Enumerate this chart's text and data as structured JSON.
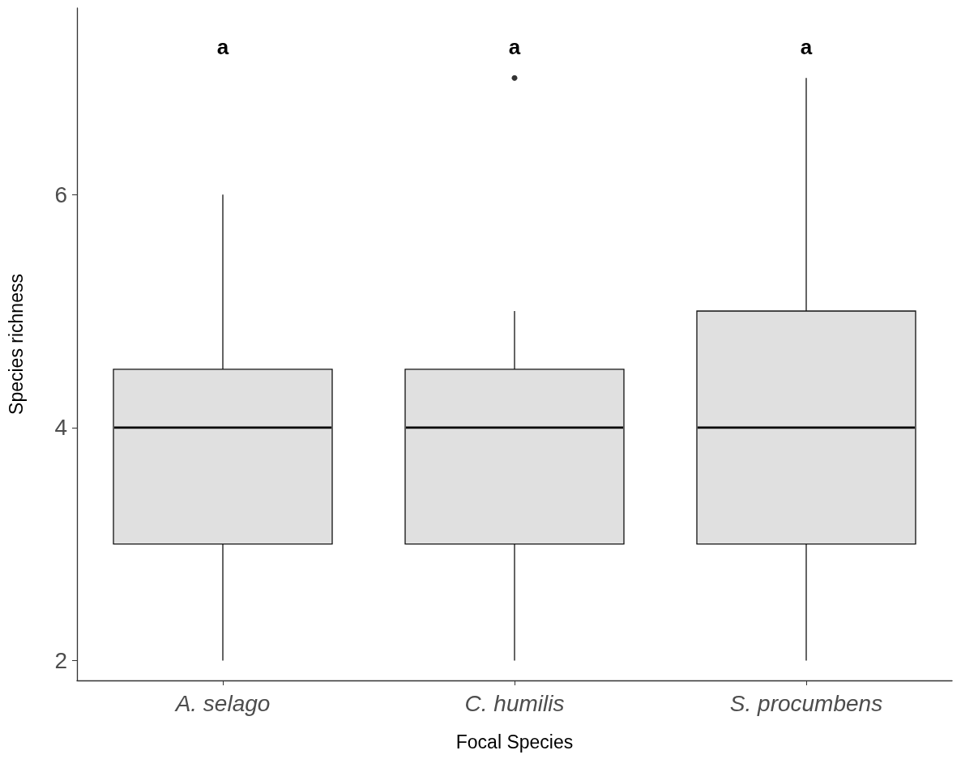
{
  "chart_data": {
    "type": "box",
    "xlabel": "Focal Species",
    "ylabel": "Species richness",
    "categories": [
      "A. selago",
      "C. humilis",
      "S. procumbens"
    ],
    "boxes": [
      {
        "low": 2,
        "q1": 3,
        "median": 4,
        "q3": 4.5,
        "high": 6
      },
      {
        "low": 2,
        "q1": 3,
        "median": 4,
        "q3": 4.5,
        "high": 5,
        "outliers": [
          7
        ]
      },
      {
        "low": 2,
        "q1": 3,
        "median": 4,
        "q3": 5,
        "high": 7
      }
    ],
    "colors": [
      "#e0e0e0",
      "#e0e0e0",
      "#e0e0e0"
    ],
    "ylim": [
      1.83,
      7.6
    ],
    "yticks": [
      2,
      4,
      6
    ],
    "marker": "circle",
    "annotations": [
      "a",
      "a",
      "a"
    ]
  }
}
